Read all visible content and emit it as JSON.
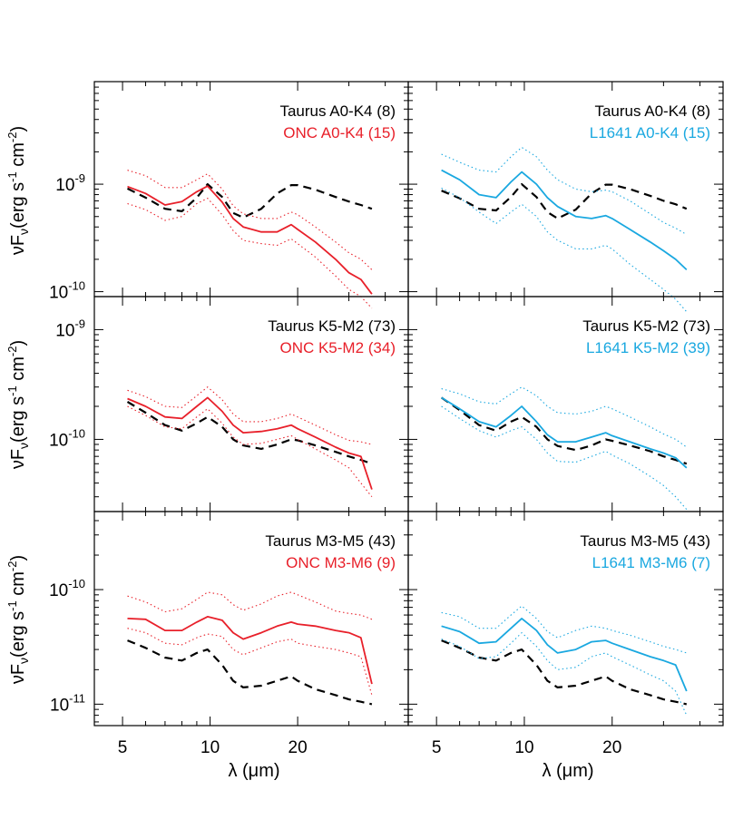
{
  "figure": {
    "ylabel": "νF",
    "ylabel_sub": "ν",
    "ylabel_unit": "(erg s",
    "ylabel_unit_mid": " cm",
    "ylabel_unit_end": ")",
    "ylabel_exp1": "-1",
    "ylabel_exp2": "-2",
    "xlabel": "λ (μm)"
  },
  "colors": {
    "taurus": "#000000",
    "onc": "#e8202a",
    "l1641": "#1aa8e0"
  },
  "chart_data": [
    {
      "type": "line",
      "panel": "top-left",
      "xscale": "log",
      "yscale": "log",
      "xlim": [
        4.0,
        48.0
      ],
      "ylim": [
        9e-11,
        9e-09
      ],
      "xticks": [
        5,
        10,
        20
      ],
      "xticklabels": [
        "5",
        "10",
        "20"
      ],
      "yticks": [
        1e-10,
        1e-09
      ],
      "yticklabels": [
        {
          "base": "10",
          "exp": "-10"
        },
        {
          "base": "10",
          "exp": "-9"
        }
      ],
      "legend": [
        {
          "label": "Taurus A0-K4 (8)",
          "color": "#000000"
        },
        {
          "label": "ONC A0-K4 (15)",
          "color": "#e8202a"
        }
      ],
      "legend_position": "top-right",
      "x": [
        5.2,
        6,
        7,
        8,
        9,
        9.8,
        11,
        12,
        13,
        15,
        17,
        19,
        20,
        23,
        27,
        30,
        33,
        36
      ],
      "series": [
        {
          "style": "dashed",
          "color": "#000000",
          "values": [
            9.1e-10,
            7.5e-10,
            5.9e-10,
            5.6e-10,
            7.5e-10,
            1e-09,
            7.6e-10,
            5.4e-10,
            4.9e-10,
            5.9e-10,
            8.2e-10,
            9.8e-10,
            9.8e-10,
            8.9e-10,
            7.6e-10,
            6.9e-10,
            6.4e-10,
            5.9e-10
          ]
        },
        {
          "style": "solid",
          "color": "#e8202a",
          "values": [
            9.5e-10,
            8.2e-10,
            6.4e-10,
            6.9e-10,
            8.5e-10,
            9.6e-10,
            6.8e-10,
            4.8e-10,
            4e-10,
            3.6e-10,
            3.6e-10,
            4.2e-10,
            3.8e-10,
            2.9e-10,
            2e-10,
            1.5e-10,
            1.3e-10,
            9.5e-11
          ]
        },
        {
          "style": "dotted",
          "color": "#e8202a",
          "values": [
            1.35e-09,
            1.2e-09,
            9.3e-10,
            9.3e-10,
            1.1e-09,
            1.25e-09,
            9e-10,
            6.3e-10,
            5.3e-10,
            4.8e-10,
            4.8e-10,
            5.5e-10,
            5.2e-10,
            4e-10,
            2.9e-10,
            2.3e-10,
            2e-10,
            1.6e-10
          ]
        },
        {
          "style": "dotted",
          "color": "#e8202a",
          "values": [
            6.6e-10,
            5.8e-10,
            4.6e-10,
            5e-10,
            6.6e-10,
            7.4e-10,
            5.2e-10,
            3.7e-10,
            3e-10,
            2.8e-10,
            2.7e-10,
            3.1e-10,
            2.8e-10,
            2.1e-10,
            1.4e-10,
            1.05e-10,
            9e-11,
            7e-11
          ]
        }
      ]
    },
    {
      "type": "line",
      "panel": "top-right",
      "xscale": "log",
      "yscale": "log",
      "xlim": [
        4.0,
        48.0
      ],
      "ylim": [
        9e-11,
        9e-09
      ],
      "xticks": [
        5,
        10,
        20
      ],
      "xticklabels": [
        "5",
        "10",
        "20"
      ],
      "yticks": [
        1e-10,
        1e-09
      ],
      "yticklabels": [],
      "legend": [
        {
          "label": "Taurus A0-K4 (8)",
          "color": "#000000"
        },
        {
          "label": "L1641 A0-K4 (15)",
          "color": "#1aa8e0"
        }
      ],
      "legend_position": "top-right",
      "x": [
        5.2,
        6,
        7,
        8,
        9,
        9.8,
        11,
        12,
        13,
        15,
        17,
        19,
        20,
        23,
        27,
        30,
        33,
        36
      ],
      "series": [
        {
          "style": "dashed",
          "color": "#000000",
          "values": [
            8.7e-10,
            7.4e-10,
            5.9e-10,
            5.7e-10,
            7.6e-10,
            1e-09,
            7.6e-10,
            5.5e-10,
            4.8e-10,
            5.8e-10,
            8.2e-10,
            9.9e-10,
            9.9e-10,
            9e-10,
            7.8e-10,
            7e-10,
            6.5e-10,
            5.9e-10
          ]
        },
        {
          "style": "solid",
          "color": "#1aa8e0",
          "values": [
            1.35e-09,
            1.1e-09,
            8e-10,
            7.5e-10,
            1.05e-09,
            1.3e-09,
            1e-09,
            7.5e-10,
            6.2e-10,
            5e-10,
            4.8e-10,
            5.1e-10,
            4.8e-10,
            3.8e-10,
            2.9e-10,
            2.4e-10,
            2e-10,
            1.6e-10
          ]
        },
        {
          "style": "dotted",
          "color": "#1aa8e0",
          "values": [
            1.9e-09,
            1.6e-09,
            1.35e-09,
            1.3e-09,
            1.8e-09,
            2.2e-09,
            1.8e-09,
            1.35e-09,
            1.1e-09,
            9e-10,
            8.5e-10,
            8.8e-10,
            8.5e-10,
            7e-10,
            5.3e-10,
            4.4e-10,
            3.9e-10,
            3.4e-10
          ]
        },
        {
          "style": "dotted",
          "color": "#1aa8e0",
          "values": [
            9.2e-10,
            7.5e-10,
            5.5e-10,
            4.3e-10,
            5.5e-10,
            6.5e-10,
            5e-10,
            3.6e-10,
            3e-10,
            2.5e-10,
            2.5e-10,
            2.7e-10,
            2.5e-10,
            1.8e-10,
            1.3e-10,
            1.05e-10,
            8.5e-11,
            6.5e-11
          ]
        }
      ]
    },
    {
      "type": "line",
      "panel": "middle-left",
      "xscale": "log",
      "yscale": "log",
      "xlim": [
        4.0,
        48.0
      ],
      "ylim": [
        2.2e-11,
        2e-09
      ],
      "xticks": [
        5,
        10,
        20
      ],
      "xticklabels": [
        "5",
        "10",
        "20"
      ],
      "yticks": [
        1e-10,
        1e-09
      ],
      "yticklabels": [
        {
          "base": "10",
          "exp": "-10"
        },
        {
          "base": "10",
          "exp": "-9"
        }
      ],
      "legend": [
        {
          "label": "Taurus K5-M2 (73)",
          "color": "#000000"
        },
        {
          "label": "ONC K5-M2 (34)",
          "color": "#e8202a"
        }
      ],
      "legend_position": "top-right",
      "x": [
        5.2,
        6,
        7,
        8,
        9,
        9.8,
        11,
        12,
        13,
        15,
        17,
        19,
        20,
        23,
        27,
        30,
        33,
        36
      ],
      "series": [
        {
          "style": "dashed",
          "color": "#000000",
          "values": [
            2.2e-10,
            1.75e-10,
            1.35e-10,
            1.2e-10,
            1.4e-10,
            1.6e-10,
            1.3e-10,
            1e-10,
            8.8e-11,
            8.2e-11,
            9e-11,
            1e-10,
            9.8e-11,
            8.8e-11,
            7.7e-11,
            7e-11,
            6.5e-11,
            6e-11
          ]
        },
        {
          "style": "solid",
          "color": "#e8202a",
          "values": [
            2.35e-10,
            2e-10,
            1.6e-10,
            1.55e-10,
            2e-10,
            2.4e-10,
            1.8e-10,
            1.35e-10,
            1.15e-10,
            1.18e-10,
            1.25e-10,
            1.35e-10,
            1.25e-10,
            1.05e-10,
            8.5e-11,
            7.5e-11,
            7e-11,
            3.5e-11
          ]
        },
        {
          "style": "dotted",
          "color": "#e8202a",
          "values": [
            2.8e-10,
            2.45e-10,
            2e-10,
            1.95e-10,
            2.5e-10,
            3e-10,
            2.3e-10,
            1.7e-10,
            1.45e-10,
            1.45e-10,
            1.55e-10,
            1.7e-10,
            1.6e-10,
            1.35e-10,
            1.1e-10,
            9.8e-11,
            9.5e-11,
            9e-11
          ]
        },
        {
          "style": "dotted",
          "color": "#e8202a",
          "values": [
            2e-10,
            1.65e-10,
            1.3e-10,
            1.25e-10,
            1.6e-10,
            1.9e-10,
            1.4e-10,
            1.05e-10,
            9e-11,
            9.2e-11,
            1e-10,
            1.08e-10,
            1e-10,
            8.2e-11,
            6.5e-11,
            5.5e-11,
            4e-11,
            3e-11
          ]
        }
      ]
    },
    {
      "type": "line",
      "panel": "middle-right",
      "xscale": "log",
      "yscale": "log",
      "xlim": [
        4.0,
        48.0
      ],
      "ylim": [
        2.2e-11,
        2e-09
      ],
      "xticks": [
        5,
        10,
        20
      ],
      "xticklabels": [
        "5",
        "10",
        "20"
      ],
      "yticks": [
        1e-10,
        1e-09
      ],
      "yticklabels": [],
      "legend": [
        {
          "label": "Taurus K5-M2 (73)",
          "color": "#000000"
        },
        {
          "label": "L1641 K5-M2 (39)",
          "color": "#1aa8e0"
        }
      ],
      "legend_position": "top-right",
      "x": [
        5.2,
        6,
        7,
        8,
        9,
        9.8,
        11,
        12,
        13,
        15,
        17,
        19,
        20,
        23,
        27,
        30,
        33,
        36
      ],
      "series": [
        {
          "style": "dashed",
          "color": "#000000",
          "values": [
            2.4e-10,
            1.85e-10,
            1.35e-10,
            1.2e-10,
            1.45e-10,
            1.6e-10,
            1.3e-10,
            1e-10,
            8.7e-11,
            8e-11,
            8.8e-11,
            1e-10,
            9.7e-11,
            8.8e-11,
            7.8e-11,
            7e-11,
            6.5e-11,
            6e-11
          ]
        },
        {
          "style": "solid",
          "color": "#1aa8e0",
          "values": [
            2.4e-10,
            1.9e-10,
            1.45e-10,
            1.3e-10,
            1.65e-10,
            2e-10,
            1.45e-10,
            1.1e-10,
            9.5e-11,
            9.5e-11,
            1.05e-10,
            1.15e-10,
            1.08e-10,
            9.5e-11,
            8.2e-11,
            7.5e-11,
            6.8e-11,
            5.5e-11
          ]
        },
        {
          "style": "dotted",
          "color": "#1aa8e0",
          "values": [
            2.9e-10,
            2.6e-10,
            2.2e-10,
            2.1e-10,
            2.6e-10,
            3e-10,
            2.5e-10,
            2e-10,
            1.75e-10,
            1.7e-10,
            1.8e-10,
            2e-10,
            1.9e-10,
            1.6e-10,
            1.3e-10,
            1.12e-10,
            1e-10,
            8.5e-11
          ]
        },
        {
          "style": "dotted",
          "color": "#1aa8e0",
          "values": [
            2e-10,
            1.55e-10,
            1.2e-10,
            1.05e-10,
            1.2e-10,
            1.3e-10,
            1e-10,
            7.5e-11,
            6.3e-11,
            6.2e-11,
            7e-11,
            7.8e-11,
            7.2e-11,
            6e-11,
            4.6e-11,
            3.8e-11,
            3e-11,
            2.3e-11
          ]
        }
      ]
    },
    {
      "type": "line",
      "panel": "bottom-left",
      "xscale": "log",
      "yscale": "log",
      "xlim": [
        4.0,
        48.0
      ],
      "ylim": [
        6.5e-12,
        4.8e-10
      ],
      "xticks": [
        5,
        10,
        20
      ],
      "xticklabels": [
        "5",
        "10",
        "20"
      ],
      "yticks": [
        1e-11,
        1e-10
      ],
      "yticklabels": [
        {
          "base": "10",
          "exp": "-11"
        },
        {
          "base": "10",
          "exp": "-10"
        }
      ],
      "legend": [
        {
          "label": "Taurus M3-M5 (43)",
          "color": "#000000"
        },
        {
          "label": "ONC M3-M6 (9)",
          "color": "#e8202a"
        }
      ],
      "legend_position": "top-right",
      "x": [
        5.2,
        6,
        7,
        8,
        9,
        9.8,
        11,
        12,
        13,
        15,
        17,
        19,
        20,
        23,
        27,
        30,
        33,
        36
      ],
      "series": [
        {
          "style": "dashed",
          "color": "#000000",
          "values": [
            3.6e-11,
            3.1e-11,
            2.55e-11,
            2.4e-11,
            2.8e-11,
            3e-11,
            2.2e-11,
            1.6e-11,
            1.4e-11,
            1.45e-11,
            1.6e-11,
            1.75e-11,
            1.6e-11,
            1.35e-11,
            1.2e-11,
            1.1e-11,
            1.05e-11,
            1e-11
          ]
        },
        {
          "style": "solid",
          "color": "#e8202a",
          "values": [
            5.6e-11,
            5.5e-11,
            4.4e-11,
            4.4e-11,
            5.2e-11,
            5.8e-11,
            5.4e-11,
            4.2e-11,
            3.7e-11,
            4.2e-11,
            4.8e-11,
            5.2e-11,
            5e-11,
            4.8e-11,
            4.4e-11,
            4.2e-11,
            3.8e-11,
            1.5e-11
          ]
        },
        {
          "style": "dotted",
          "color": "#e8202a",
          "values": [
            8.8e-11,
            7.8e-11,
            6.4e-11,
            6.8e-11,
            8.2e-11,
            9.5e-11,
            9e-11,
            7.4e-11,
            6.6e-11,
            7.5e-11,
            8.8e-11,
            9.5e-11,
            9e-11,
            7.8e-11,
            6.5e-11,
            6.2e-11,
            6e-11,
            5.5e-11
          ]
        },
        {
          "style": "dotted",
          "color": "#e8202a",
          "values": [
            4.6e-11,
            4.2e-11,
            3.4e-11,
            3.3e-11,
            3.8e-11,
            4.1e-11,
            3.9e-11,
            3e-11,
            2.7e-11,
            3.1e-11,
            3.5e-11,
            3.7e-11,
            3.4e-11,
            3.2e-11,
            3e-11,
            2.8e-11,
            2.6e-11,
            1.2e-11
          ]
        }
      ]
    },
    {
      "type": "line",
      "panel": "bottom-right",
      "xscale": "log",
      "yscale": "log",
      "xlim": [
        4.0,
        48.0
      ],
      "ylim": [
        6.5e-12,
        4.8e-10
      ],
      "xticks": [
        5,
        10,
        20
      ],
      "xticklabels": [
        "5",
        "10",
        "20"
      ],
      "yticks": [
        1e-11,
        1e-10
      ],
      "yticklabels": [],
      "legend": [
        {
          "label": "Taurus M3-M5 (43)",
          "color": "#000000"
        },
        {
          "label": "L1641 M3-M6 (7)",
          "color": "#1aa8e0"
        }
      ],
      "legend_position": "top-right",
      "x": [
        5.2,
        6,
        7,
        8,
        9,
        9.8,
        11,
        12,
        13,
        15,
        17,
        19,
        20,
        23,
        27,
        30,
        33,
        36
      ],
      "series": [
        {
          "style": "dashed",
          "color": "#000000",
          "values": [
            3.6e-11,
            3.1e-11,
            2.55e-11,
            2.4e-11,
            2.8e-11,
            3e-11,
            2.2e-11,
            1.6e-11,
            1.4e-11,
            1.45e-11,
            1.6e-11,
            1.75e-11,
            1.6e-11,
            1.35e-11,
            1.2e-11,
            1.1e-11,
            1.05e-11,
            1e-11
          ]
        },
        {
          "style": "solid",
          "color": "#1aa8e0",
          "values": [
            4.8e-11,
            4.3e-11,
            3.4e-11,
            3.5e-11,
            4.6e-11,
            5.6e-11,
            4.4e-11,
            3.3e-11,
            2.8e-11,
            3e-11,
            3.5e-11,
            3.6e-11,
            3.4e-11,
            3e-11,
            2.6e-11,
            2.4e-11,
            2.2e-11,
            1.3e-11
          ]
        },
        {
          "style": "dotted",
          "color": "#1aa8e0",
          "values": [
            6.3e-11,
            5.8e-11,
            4.6e-11,
            4.6e-11,
            6e-11,
            7.2e-11,
            5.6e-11,
            4.3e-11,
            3.8e-11,
            4.4e-11,
            4.8e-11,
            4.6e-11,
            4.4e-11,
            4e-11,
            3.5e-11,
            3.2e-11,
            3e-11,
            2.8e-11
          ]
        },
        {
          "style": "dotted",
          "color": "#1aa8e0",
          "values": [
            3.7e-11,
            3.2e-11,
            2.5e-11,
            2.6e-11,
            3.4e-11,
            4.2e-11,
            3.2e-11,
            2.4e-11,
            2e-11,
            2.1e-11,
            2.6e-11,
            2.8e-11,
            2.6e-11,
            2.2e-11,
            1.8e-11,
            1.6e-11,
            1.3e-11,
            8e-12
          ]
        }
      ]
    }
  ]
}
